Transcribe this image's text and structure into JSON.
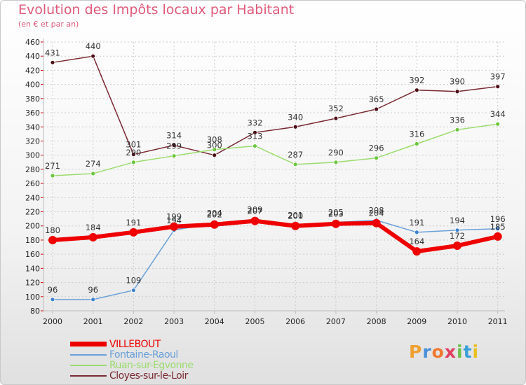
{
  "title": "Evolution des Impôts locaux par Habitant",
  "subtitle": "(en € et par an)",
  "brand": "Proxiti",
  "chart_data": {
    "type": "line",
    "title": "Evolution des Impôts locaux par Habitant",
    "subtitle": "(en € et par an)",
    "xlabel": "",
    "ylabel": "",
    "ylim": [
      80,
      460
    ],
    "yticks": [
      80,
      100,
      120,
      140,
      160,
      180,
      200,
      220,
      240,
      260,
      280,
      300,
      320,
      340,
      360,
      380,
      400,
      420,
      440,
      460
    ],
    "x": [
      "2000",
      "2001",
      "2002",
      "2003",
      "2004",
      "2005",
      "2006",
      "2007",
      "2008",
      "2009",
      "2010",
      "2011"
    ],
    "grid": true,
    "legend_position": "bottom-left",
    "series": [
      {
        "name": "Cloyes-sur-le-Loir",
        "color": "#7a2a33",
        "marker": "#4d0f17",
        "width": 1.5,
        "radius": 3,
        "values": [
          431,
          440,
          301,
          314,
          300,
          332,
          340,
          352,
          365,
          392,
          390,
          397
        ]
      },
      {
        "name": "Ruan-sur-Egvonne",
        "color": "#9bdc6e",
        "marker": "#6bc63e",
        "width": 1.5,
        "radius": 3,
        "values": [
          271,
          274,
          290,
          299,
          308,
          313,
          287,
          290,
          296,
          316,
          336,
          344
        ]
      },
      {
        "name": "Fontaine-Raoul",
        "color": "#6aa0d8",
        "marker": "#3b82cf",
        "width": 1.5,
        "radius": 3,
        "values": [
          96,
          96,
          109,
          194,
          204,
          209,
          201,
          205,
          208,
          191,
          194,
          196
        ]
      },
      {
        "name": "VILLEBOUT",
        "color": "#ee0000",
        "marker": "#ee0000",
        "width": 6,
        "radius": 6,
        "values": [
          180,
          184,
          191,
          199,
          202,
          207,
          200,
          203,
          204,
          164,
          172,
          185
        ]
      }
    ]
  },
  "legend": [
    {
      "name": "VILLEBOUT",
      "color": "#ee0000",
      "thickness": 7
    },
    {
      "name": "Fontaine-Raoul",
      "color": "#6aa0d8",
      "thickness": 2
    },
    {
      "name": "Ruan-sur-Egvonne",
      "color": "#9bdc6e",
      "thickness": 2
    },
    {
      "name": "Cloyes-sur-le-Loir",
      "color": "#7a2a33",
      "thickness": 2
    }
  ],
  "colors": {
    "title": "#e05a7a",
    "axis": "#bbbbbb",
    "grid": "#cccccc",
    "zero_axis": "#dd0000"
  }
}
